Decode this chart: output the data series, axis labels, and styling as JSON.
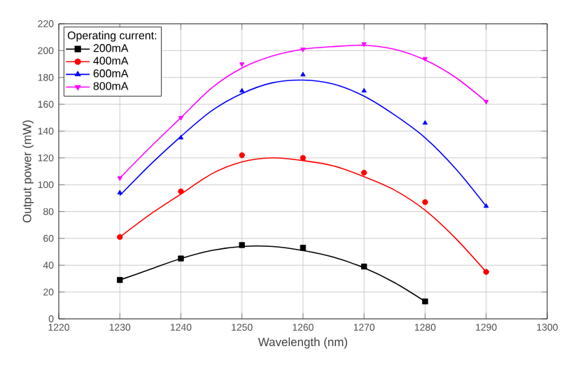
{
  "chart_data": {
    "type": "scatter",
    "xlabel": "Wavelength (nm)",
    "ylabel": "Output power (mW)",
    "legend_title": "Operating current:",
    "xlim": [
      1220,
      1300
    ],
    "xticks": [
      1220,
      1230,
      1240,
      1250,
      1260,
      1270,
      1280,
      1290,
      1300
    ],
    "ylim": [
      0,
      220
    ],
    "yticks": [
      0,
      20,
      40,
      60,
      80,
      100,
      120,
      140,
      160,
      180,
      200,
      220
    ],
    "grid": true,
    "legend": "top left",
    "series": [
      {
        "name": "200mA",
        "marker": "square",
        "color": "#000000",
        "x": [
          1230,
          1240,
          1250,
          1260,
          1270,
          1280
        ],
        "values": [
          29,
          45,
          55,
          53,
          39,
          13
        ]
      },
      {
        "name": "400mA",
        "marker": "circle",
        "color": "#ff0000",
        "x": [
          1230,
          1240,
          1250,
          1260,
          1270,
          1280,
          1290
        ],
        "values": [
          61,
          95,
          122,
          120,
          109,
          87,
          35
        ]
      },
      {
        "name": "600mA",
        "marker": "triangle",
        "color": "#0000ff",
        "x": [
          1230,
          1240,
          1250,
          1260,
          1270,
          1280,
          1290
        ],
        "values": [
          94,
          135,
          170,
          182,
          170,
          146,
          84
        ]
      },
      {
        "name": "800mA",
        "marker": "triangle-down",
        "color": "#ff00ff",
        "x": [
          1230,
          1240,
          1250,
          1260,
          1270,
          1280,
          1290
        ],
        "values": [
          105,
          150,
          190,
          201,
          205,
          194,
          162
        ]
      },
      {
        "type": "line",
        "marker": "none",
        "color": "#000000",
        "x": [
          1230,
          1235,
          1240,
          1245,
          1250,
          1255,
          1260,
          1265,
          1270,
          1275,
          1280
        ],
        "values": [
          29,
          37,
          45,
          51,
          54,
          54,
          51,
          46,
          38,
          27,
          13
        ]
      },
      {
        "type": "line",
        "marker": "none",
        "color": "#ff0000",
        "x": [
          1230,
          1235,
          1240,
          1245,
          1250,
          1255,
          1260,
          1265,
          1270,
          1275,
          1280,
          1285,
          1290
        ],
        "values": [
          61,
          78,
          93,
          108,
          117,
          120,
          118,
          114,
          106,
          96,
          81,
          60,
          35
        ]
      },
      {
        "type": "line",
        "marker": "none",
        "color": "#0000ff",
        "x": [
          1230,
          1235,
          1240,
          1245,
          1250,
          1255,
          1260,
          1265,
          1270,
          1275,
          1280,
          1285,
          1290
        ],
        "values": [
          92,
          115,
          136,
          155,
          168,
          176,
          178,
          175,
          166,
          152,
          135,
          112,
          84
        ]
      },
      {
        "type": "line",
        "marker": "none",
        "color": "#ff00ff",
        "x": [
          1230,
          1235,
          1240,
          1245,
          1250,
          1255,
          1260,
          1265,
          1270,
          1275,
          1280,
          1285,
          1290
        ],
        "values": [
          105,
          128,
          150,
          172,
          187,
          196,
          201,
          203,
          204,
          201,
          193,
          180,
          162
        ]
      }
    ]
  }
}
